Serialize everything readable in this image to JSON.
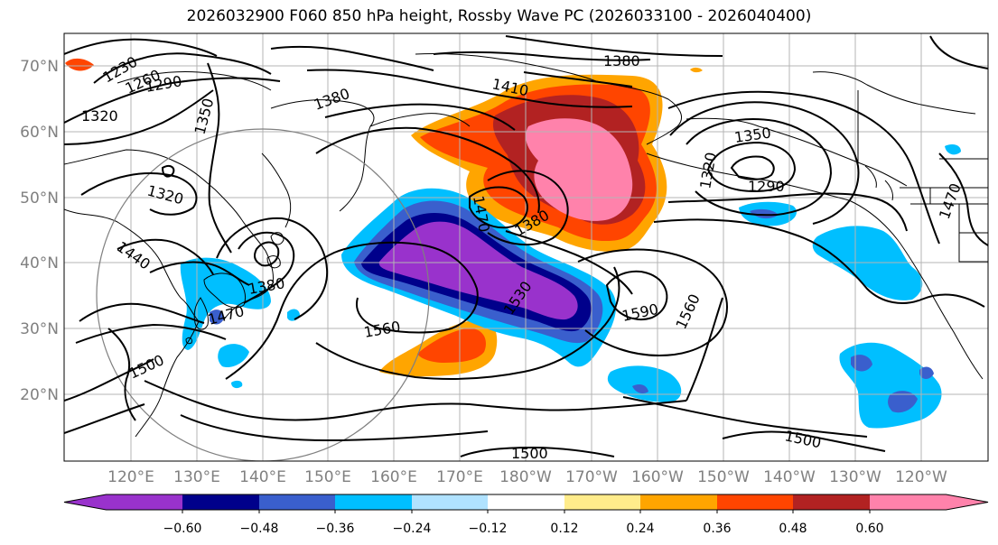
{
  "title": "2026032900 F060 850 hPa height, Rossby Wave PC (2026033100 - 2026040400)",
  "latitude_labels": [
    "70°N",
    "60°N",
    "50°N",
    "40°N",
    "30°N",
    "20°N"
  ],
  "longitude_labels": [
    "120°E",
    "130°E",
    "140°E",
    "150°E",
    "160°E",
    "170°E",
    "180°W",
    "170°W",
    "160°W",
    "150°W",
    "140°W",
    "130°W",
    "120°W"
  ],
  "contour_labels": [
    "1230",
    "1260",
    "1290",
    "1320",
    "1350",
    "1380",
    "1320",
    "1440",
    "1380",
    "1470",
    "1500",
    "1410",
    "1380",
    "1380",
    "1470",
    "1530",
    "1560",
    "1590",
    "1560",
    "1350",
    "1320",
    "1290",
    "1470",
    "1500",
    "1500"
  ],
  "colorbar": {
    "ticks": [
      "−0.60",
      "−0.48",
      "−0.36",
      "−0.24",
      "−0.12",
      "0.12",
      "0.24",
      "0.36",
      "0.48",
      "0.60"
    ],
    "colors": [
      "#9932cc",
      "#00008b",
      "#3a5fcd",
      "#00bfff",
      "#b0e2ff",
      "#ffffff",
      "#ffec8b",
      "#ffa500",
      "#ff4500",
      "#b22222",
      "#ff82ab"
    ]
  }
}
